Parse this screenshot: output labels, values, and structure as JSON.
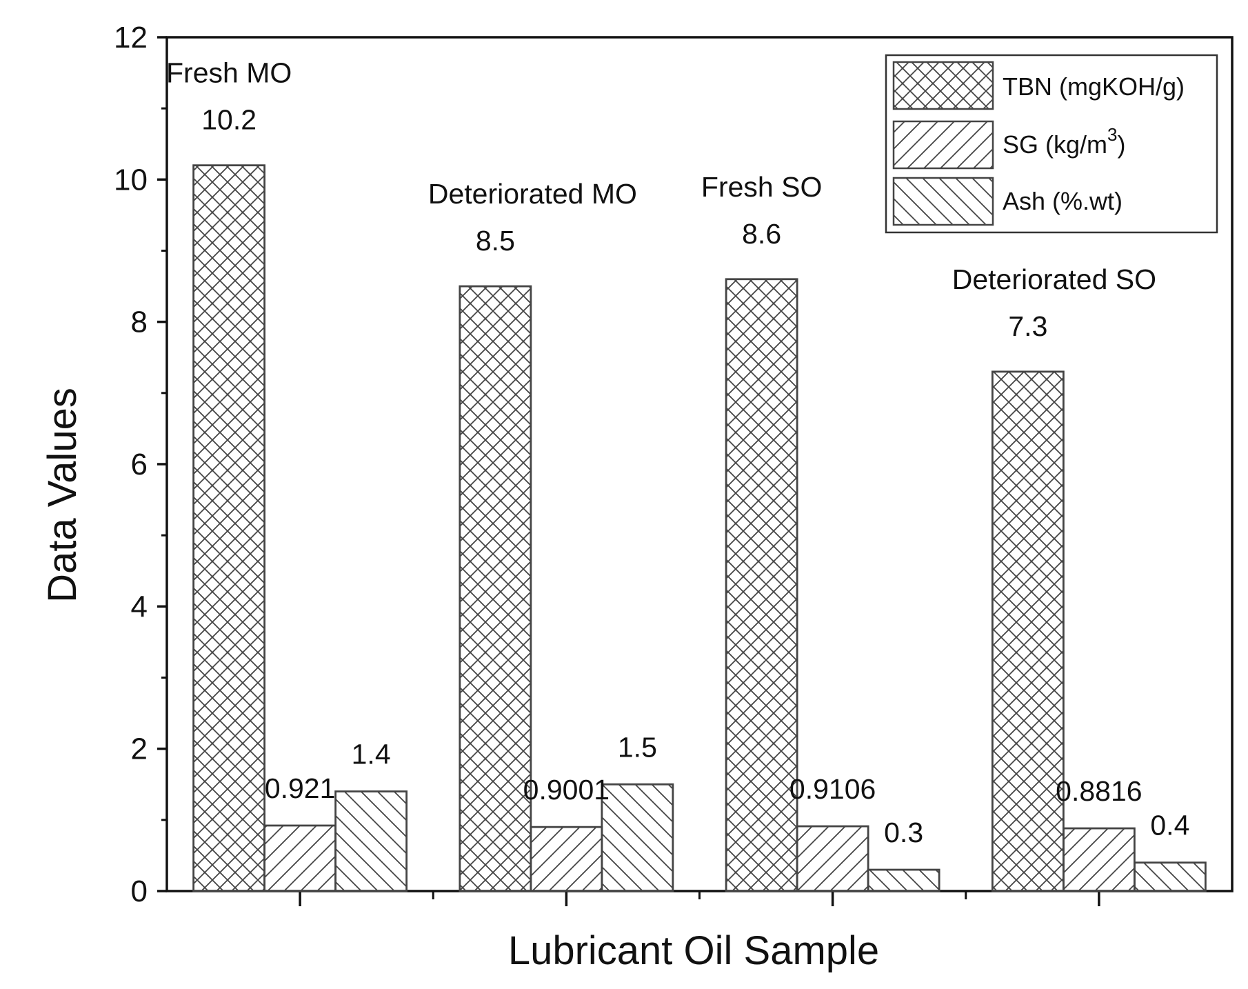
{
  "chart_data": {
    "type": "bar",
    "xlabel": "Lubricant Oil Sample",
    "ylabel": "Data Values",
    "ylim": [
      0,
      12
    ],
    "y_ticks": [
      "0",
      "2",
      "4",
      "6",
      "8",
      "10",
      "12"
    ],
    "y_minor_step": 1,
    "grid": false,
    "legend_position": "top-right",
    "categories": [
      "Fresh MO",
      "Deteriorated MO",
      "Fresh SO",
      "Deteriorated SO"
    ],
    "series": [
      {
        "name": "TBN (mgKOH/g)",
        "pattern": "crosshatch",
        "values": [
          10.2,
          8.5,
          8.6,
          7.3
        ],
        "labels": [
          "10.2",
          "8.5",
          "8.6",
          "7.3"
        ]
      },
      {
        "name": "SG (kg/m",
        "name_superscript": "3",
        "name_suffix": ")",
        "pattern": "forward-diagonal",
        "values": [
          0.921,
          0.9001,
          0.9106,
          0.8816
        ],
        "labels": [
          "0.921",
          "0.9001",
          "0.9106",
          "0.8816"
        ]
      },
      {
        "name": "Ash (%.wt)",
        "pattern": "back-diagonal",
        "values": [
          1.4,
          1.5,
          0.3,
          0.4
        ],
        "labels": [
          "1.4",
          "1.5",
          "0.3",
          "0.4"
        ]
      }
    ],
    "colors": {
      "bar_stroke": "#444444",
      "bar_fill": "#ffffff",
      "axis": "#111111",
      "text": "#111111"
    }
  }
}
